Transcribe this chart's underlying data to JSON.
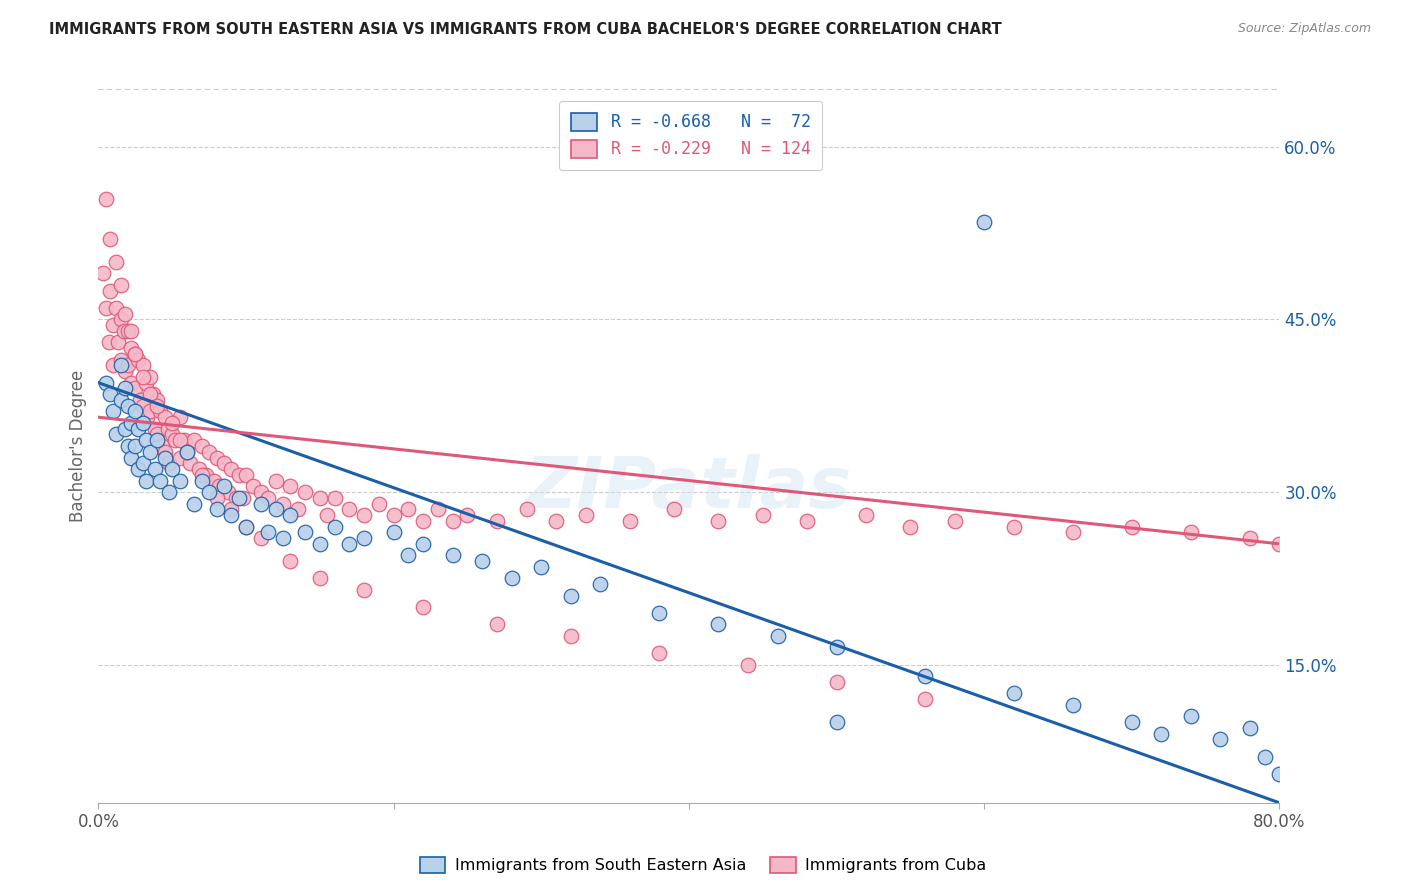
{
  "title": "IMMIGRANTS FROM SOUTH EASTERN ASIA VS IMMIGRANTS FROM CUBA BACHELOR'S DEGREE CORRELATION CHART",
  "source": "Source: ZipAtlas.com",
  "ylabel": "Bachelor's Degree",
  "yticks": [
    0.15,
    0.3,
    0.45,
    0.6
  ],
  "ytick_labels": [
    "15.0%",
    "30.0%",
    "45.0%",
    "60.0%"
  ],
  "xlim": [
    0.0,
    0.8
  ],
  "ylim": [
    0.03,
    0.65
  ],
  "blue_color": "#b8d0e8",
  "pink_color": "#f4b8c8",
  "blue_line_color": "#1a5fa8",
  "pink_line_color": "#e05878",
  "legend_blue_label": "R = -0.668   N =  72",
  "legend_pink_label": "R = -0.229   N = 124",
  "blue_line_start_y": 0.395,
  "blue_line_end_y": 0.03,
  "pink_line_start_y": 0.365,
  "pink_line_end_y": 0.255,
  "blue_x": [
    0.005,
    0.008,
    0.01,
    0.012,
    0.015,
    0.015,
    0.018,
    0.018,
    0.02,
    0.02,
    0.022,
    0.022,
    0.025,
    0.025,
    0.027,
    0.027,
    0.03,
    0.03,
    0.032,
    0.032,
    0.035,
    0.038,
    0.04,
    0.042,
    0.045,
    0.048,
    0.05,
    0.055,
    0.06,
    0.065,
    0.07,
    0.075,
    0.08,
    0.085,
    0.09,
    0.095,
    0.1,
    0.11,
    0.115,
    0.12,
    0.125,
    0.13,
    0.14,
    0.15,
    0.16,
    0.17,
    0.18,
    0.2,
    0.21,
    0.22,
    0.24,
    0.26,
    0.28,
    0.3,
    0.32,
    0.34,
    0.38,
    0.42,
    0.46,
    0.5,
    0.56,
    0.62,
    0.66,
    0.7,
    0.72,
    0.74,
    0.76,
    0.78,
    0.79,
    0.8,
    0.5,
    0.6
  ],
  "blue_y": [
    0.395,
    0.385,
    0.37,
    0.35,
    0.41,
    0.38,
    0.39,
    0.355,
    0.375,
    0.34,
    0.36,
    0.33,
    0.37,
    0.34,
    0.355,
    0.32,
    0.36,
    0.325,
    0.345,
    0.31,
    0.335,
    0.32,
    0.345,
    0.31,
    0.33,
    0.3,
    0.32,
    0.31,
    0.335,
    0.29,
    0.31,
    0.3,
    0.285,
    0.305,
    0.28,
    0.295,
    0.27,
    0.29,
    0.265,
    0.285,
    0.26,
    0.28,
    0.265,
    0.255,
    0.27,
    0.255,
    0.26,
    0.265,
    0.245,
    0.255,
    0.245,
    0.24,
    0.225,
    0.235,
    0.21,
    0.22,
    0.195,
    0.185,
    0.175,
    0.165,
    0.14,
    0.125,
    0.115,
    0.1,
    0.09,
    0.105,
    0.085,
    0.095,
    0.07,
    0.055,
    0.1,
    0.535
  ],
  "pink_x": [
    0.003,
    0.005,
    0.007,
    0.008,
    0.01,
    0.01,
    0.012,
    0.013,
    0.015,
    0.015,
    0.017,
    0.018,
    0.02,
    0.02,
    0.022,
    0.022,
    0.025,
    0.025,
    0.027,
    0.028,
    0.03,
    0.03,
    0.032,
    0.033,
    0.035,
    0.035,
    0.037,
    0.038,
    0.04,
    0.04,
    0.042,
    0.043,
    0.045,
    0.045,
    0.047,
    0.048,
    0.05,
    0.052,
    0.055,
    0.055,
    0.058,
    0.06,
    0.062,
    0.065,
    0.068,
    0.07,
    0.073,
    0.075,
    0.078,
    0.08,
    0.082,
    0.085,
    0.088,
    0.09,
    0.093,
    0.095,
    0.098,
    0.1,
    0.105,
    0.11,
    0.115,
    0.12,
    0.125,
    0.13,
    0.135,
    0.14,
    0.15,
    0.155,
    0.16,
    0.17,
    0.18,
    0.19,
    0.2,
    0.21,
    0.22,
    0.23,
    0.24,
    0.25,
    0.27,
    0.29,
    0.31,
    0.33,
    0.36,
    0.39,
    0.42,
    0.45,
    0.48,
    0.52,
    0.55,
    0.58,
    0.62,
    0.66,
    0.7,
    0.74,
    0.78,
    0.8,
    0.005,
    0.008,
    0.012,
    0.015,
    0.018,
    0.022,
    0.025,
    0.03,
    0.035,
    0.04,
    0.05,
    0.055,
    0.06,
    0.07,
    0.08,
    0.09,
    0.1,
    0.11,
    0.13,
    0.15,
    0.18,
    0.22,
    0.27,
    0.32,
    0.38,
    0.44,
    0.5,
    0.56
  ],
  "pink_y": [
    0.49,
    0.46,
    0.43,
    0.475,
    0.445,
    0.41,
    0.46,
    0.43,
    0.45,
    0.415,
    0.44,
    0.405,
    0.44,
    0.41,
    0.425,
    0.395,
    0.42,
    0.39,
    0.415,
    0.38,
    0.41,
    0.375,
    0.395,
    0.365,
    0.4,
    0.37,
    0.385,
    0.355,
    0.38,
    0.35,
    0.37,
    0.34,
    0.365,
    0.335,
    0.355,
    0.325,
    0.35,
    0.345,
    0.365,
    0.33,
    0.345,
    0.34,
    0.325,
    0.345,
    0.32,
    0.34,
    0.315,
    0.335,
    0.31,
    0.33,
    0.305,
    0.325,
    0.3,
    0.32,
    0.295,
    0.315,
    0.295,
    0.315,
    0.305,
    0.3,
    0.295,
    0.31,
    0.29,
    0.305,
    0.285,
    0.3,
    0.295,
    0.28,
    0.295,
    0.285,
    0.28,
    0.29,
    0.28,
    0.285,
    0.275,
    0.285,
    0.275,
    0.28,
    0.275,
    0.285,
    0.275,
    0.28,
    0.275,
    0.285,
    0.275,
    0.28,
    0.275,
    0.28,
    0.27,
    0.275,
    0.27,
    0.265,
    0.27,
    0.265,
    0.26,
    0.255,
    0.555,
    0.52,
    0.5,
    0.48,
    0.455,
    0.44,
    0.42,
    0.4,
    0.385,
    0.375,
    0.36,
    0.345,
    0.335,
    0.315,
    0.295,
    0.285,
    0.27,
    0.26,
    0.24,
    0.225,
    0.215,
    0.2,
    0.185,
    0.175,
    0.16,
    0.15,
    0.135,
    0.12
  ]
}
